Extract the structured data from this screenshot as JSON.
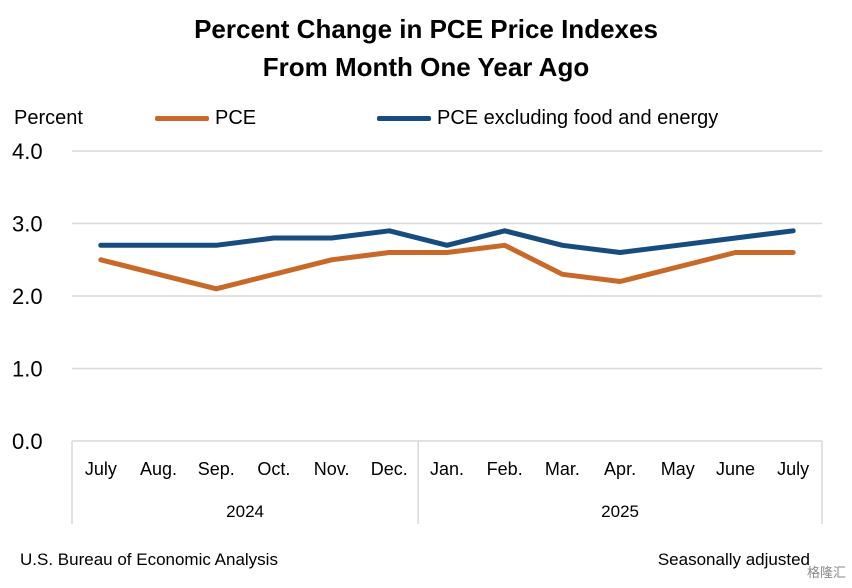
{
  "chart_data": {
    "type": "line",
    "title": "Percent Change in PCE Price Indexes",
    "subtitle": "From Month One Year Ago",
    "ylabel": "Percent",
    "ylim": [
      0,
      4
    ],
    "yticks": [
      "0.0",
      "1.0",
      "2.0",
      "3.0",
      "4.0"
    ],
    "categories": [
      "July",
      "Aug.",
      "Sep.",
      "Oct.",
      "Nov.",
      "Dec.",
      "Jan.",
      "Feb.",
      "Mar.",
      "Apr.",
      "May",
      "June",
      "July"
    ],
    "year_groups": [
      {
        "label": "2024",
        "count": 6
      },
      {
        "label": "2025",
        "count": 7
      }
    ],
    "grid": true,
    "legend_position": "top",
    "series": [
      {
        "name": "PCE",
        "color": "#C8692A",
        "values": [
          2.5,
          2.3,
          2.1,
          2.3,
          2.5,
          2.6,
          2.6,
          2.7,
          2.3,
          2.2,
          2.4,
          2.6,
          2.6
        ]
      },
      {
        "name": "PCE excluding food and energy",
        "color": "#174C80",
        "values": [
          2.7,
          2.7,
          2.7,
          2.8,
          2.8,
          2.9,
          2.7,
          2.9,
          2.7,
          2.6,
          2.7,
          2.8,
          2.9
        ]
      }
    ]
  },
  "footer": {
    "source": "U.S. Bureau of Economic Analysis",
    "note": "Seasonally adjusted",
    "watermark": "格隆汇"
  }
}
